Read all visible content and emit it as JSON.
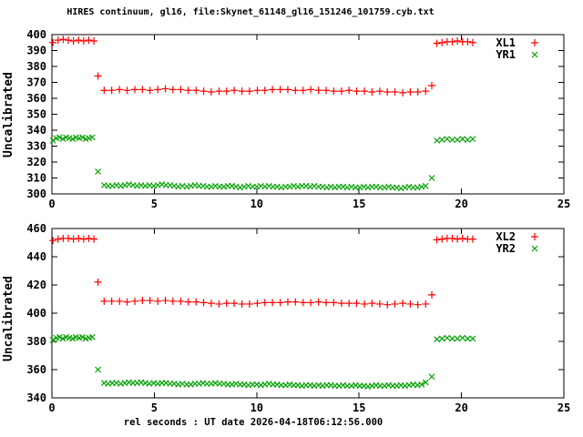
{
  "title": "HIRES continuum, gl16, file:Skynet_61148_gl16_151246_101759.cyb.txt",
  "xlabel": "rel seconds : UT date 2026-04-18T06:12:56.000",
  "palette": {
    "red": "#ff0000",
    "green": "#00a000",
    "axis": "#000000",
    "background": "#ffffff"
  },
  "chart_data": [
    {
      "type": "scatter",
      "title": "",
      "ylabel": "Uncalibrated",
      "xlim": [
        0,
        25
      ],
      "ylim": [
        300,
        400
      ],
      "xticks": [
        0,
        5,
        10,
        15,
        20,
        25
      ],
      "yticks": [
        300,
        310,
        320,
        330,
        340,
        350,
        360,
        370,
        380,
        390,
        400
      ],
      "grid": false,
      "legend_position": "top-right",
      "series": [
        {
          "name": "XL1",
          "marker": "plus",
          "color": "#ff0000",
          "x": [
            0.05,
            0.3,
            0.55,
            0.8,
            1.05,
            1.3,
            1.55,
            1.8,
            2.05,
            2.25,
            2.55,
            2.92,
            3.3,
            3.67,
            4.05,
            4.42,
            4.79,
            5.17,
            5.54,
            5.91,
            6.29,
            6.66,
            7.04,
            7.41,
            7.78,
            8.16,
            8.53,
            8.9,
            9.28,
            9.65,
            10.03,
            10.4,
            10.77,
            11.15,
            11.52,
            11.89,
            12.27,
            12.64,
            13.02,
            13.39,
            13.76,
            14.14,
            14.51,
            14.88,
            15.26,
            15.63,
            16.01,
            16.38,
            16.75,
            17.13,
            17.5,
            17.87,
            18.25,
            18.55,
            18.8,
            19.05,
            19.3,
            19.55,
            19.8,
            20.05,
            20.3,
            20.55
          ],
          "y": [
            395,
            396.5,
            397,
            396.5,
            396,
            396.5,
            396,
            396.5,
            396,
            374,
            365,
            365,
            365.5,
            365,
            365.5,
            365.5,
            365,
            365.5,
            366,
            365.5,
            365.5,
            365,
            365,
            364.5,
            364,
            364.5,
            364.5,
            365,
            364.5,
            364.5,
            365,
            365,
            365.5,
            365.5,
            365.5,
            365,
            365,
            365.5,
            365,
            365,
            364.5,
            364.5,
            365,
            364.5,
            364.5,
            364,
            364.5,
            364,
            364,
            363.5,
            364,
            364,
            364.5,
            368,
            394.5,
            395,
            395.5,
            395.5,
            396,
            395.5,
            395.5,
            395
          ]
        },
        {
          "name": "YR1",
          "marker": "cross",
          "color": "#00a000",
          "x": [
            0.05,
            0.21,
            0.37,
            0.53,
            0.69,
            0.85,
            1.01,
            1.17,
            1.33,
            1.49,
            1.65,
            1.81,
            1.97,
            2.25,
            2.55,
            2.75,
            2.95,
            3.15,
            3.36,
            3.56,
            3.76,
            3.96,
            4.16,
            4.36,
            4.56,
            4.76,
            4.97,
            5.17,
            5.37,
            5.57,
            5.77,
            5.97,
            6.17,
            6.37,
            6.58,
            6.78,
            6.98,
            7.18,
            7.38,
            7.58,
            7.78,
            7.98,
            8.19,
            8.39,
            8.59,
            8.79,
            8.99,
            9.19,
            9.39,
            9.59,
            9.8,
            10.0,
            10.2,
            10.4,
            10.6,
            10.8,
            11.0,
            11.2,
            11.41,
            11.61,
            11.81,
            12.01,
            12.21,
            12.41,
            12.61,
            12.81,
            13.02,
            13.22,
            13.42,
            13.62,
            13.82,
            14.02,
            14.22,
            14.42,
            14.63,
            14.83,
            15.03,
            15.23,
            15.43,
            15.63,
            15.83,
            16.03,
            16.24,
            16.44,
            16.64,
            16.84,
            17.04,
            17.24,
            17.44,
            17.64,
            17.85,
            18.05,
            18.25,
            18.55,
            18.8,
            19.05,
            19.3,
            19.55,
            19.8,
            20.05,
            20.3,
            20.55
          ],
          "y": [
            333.5,
            335,
            335.5,
            334.5,
            335.5,
            335,
            334.5,
            335.5,
            335,
            335.5,
            334.5,
            335,
            335.5,
            314,
            305.5,
            305,
            305,
            305.5,
            305,
            305.5,
            306,
            305.5,
            305,
            305.5,
            305,
            305.5,
            305,
            305.5,
            306,
            305.5,
            305.5,
            305,
            304.5,
            305,
            304.5,
            305,
            305.5,
            305,
            305,
            304.5,
            304.5,
            305,
            304.5,
            304.5,
            305,
            305,
            304.5,
            304,
            304.5,
            305,
            304.5,
            304.5,
            305,
            304.5,
            305,
            304.5,
            304.5,
            304,
            304.5,
            304.5,
            305,
            304.5,
            305,
            305,
            304.5,
            305,
            304.5,
            304.5,
            304,
            304.5,
            304,
            304.5,
            304.5,
            304,
            304.5,
            304,
            304,
            304.5,
            304,
            304.5,
            304.5,
            304,
            304,
            304.5,
            304,
            304,
            303.5,
            304,
            304.5,
            304,
            304,
            304.5,
            305,
            310,
            333.5,
            334,
            334.5,
            334,
            334,
            334.5,
            334,
            334.5
          ]
        }
      ]
    },
    {
      "type": "scatter",
      "title": "",
      "ylabel": "Uncalibrated",
      "xlim": [
        0,
        25
      ],
      "ylim": [
        340,
        460
      ],
      "xticks": [
        0,
        5,
        10,
        15,
        20,
        25
      ],
      "yticks": [
        340,
        360,
        380,
        400,
        420,
        440,
        460
      ],
      "grid": false,
      "legend_position": "top-right",
      "series": [
        {
          "name": "XL2",
          "marker": "plus",
          "color": "#ff0000",
          "x": [
            0.05,
            0.3,
            0.55,
            0.8,
            1.05,
            1.3,
            1.55,
            1.8,
            2.05,
            2.25,
            2.55,
            2.92,
            3.3,
            3.67,
            4.05,
            4.42,
            4.79,
            5.17,
            5.54,
            5.91,
            6.29,
            6.66,
            7.04,
            7.41,
            7.78,
            8.16,
            8.53,
            8.9,
            9.28,
            9.65,
            10.03,
            10.4,
            10.77,
            11.15,
            11.52,
            11.89,
            12.27,
            12.64,
            13.02,
            13.39,
            13.76,
            14.14,
            14.51,
            14.88,
            15.26,
            15.63,
            16.01,
            16.38,
            16.75,
            17.13,
            17.5,
            17.87,
            18.25,
            18.55,
            18.8,
            19.05,
            19.3,
            19.55,
            19.8,
            20.05,
            20.3,
            20.55
          ],
          "y": [
            451.5,
            452.5,
            453,
            453,
            452.5,
            453,
            452.5,
            453,
            452.5,
            422,
            408.5,
            408.5,
            408.5,
            408,
            408.5,
            409,
            409,
            408.5,
            409,
            408.5,
            408.5,
            408,
            408,
            407.5,
            407,
            406.5,
            407,
            407,
            406.5,
            406.5,
            407,
            407.5,
            407.5,
            407.5,
            408,
            408,
            407.5,
            407.5,
            408,
            407.5,
            407.5,
            407,
            407,
            407,
            406.5,
            407,
            406.5,
            406,
            406.5,
            407,
            406.5,
            406,
            406.5,
            413,
            452,
            452.5,
            453,
            453,
            452.5,
            453,
            452.5,
            452.5
          ]
        },
        {
          "name": "YR2",
          "marker": "cross",
          "color": "#00a000",
          "x": [
            0.05,
            0.21,
            0.37,
            0.53,
            0.69,
            0.85,
            1.01,
            1.17,
            1.33,
            1.49,
            1.65,
            1.81,
            1.97,
            2.25,
            2.55,
            2.75,
            2.95,
            3.15,
            3.36,
            3.56,
            3.76,
            3.96,
            4.16,
            4.36,
            4.56,
            4.76,
            4.97,
            5.17,
            5.37,
            5.57,
            5.77,
            5.97,
            6.17,
            6.37,
            6.58,
            6.78,
            6.98,
            7.18,
            7.38,
            7.58,
            7.78,
            7.98,
            8.19,
            8.39,
            8.59,
            8.79,
            8.99,
            9.19,
            9.39,
            9.59,
            9.8,
            10.0,
            10.2,
            10.4,
            10.6,
            10.8,
            11.0,
            11.2,
            11.41,
            11.61,
            11.81,
            12.01,
            12.21,
            12.41,
            12.61,
            12.81,
            13.02,
            13.22,
            13.42,
            13.62,
            13.82,
            14.02,
            14.22,
            14.42,
            14.63,
            14.83,
            15.03,
            15.23,
            15.43,
            15.63,
            15.83,
            16.03,
            16.24,
            16.44,
            16.64,
            16.84,
            17.04,
            17.24,
            17.44,
            17.64,
            17.85,
            18.05,
            18.25,
            18.55,
            18.8,
            19.05,
            19.3,
            19.55,
            19.8,
            20.05,
            20.3,
            20.55
          ],
          "y": [
            381,
            382.5,
            383,
            382,
            383,
            382.5,
            382,
            383,
            382.5,
            383,
            382,
            382.5,
            383,
            360,
            350.5,
            350,
            350.5,
            350.5,
            350,
            350.5,
            351,
            350.5,
            350.5,
            351,
            350.5,
            350,
            350.5,
            350,
            350.5,
            350.5,
            350,
            350,
            349.5,
            350,
            349.5,
            349.5,
            350,
            350,
            350.5,
            350,
            350,
            350.5,
            350,
            350,
            349.5,
            349.5,
            350,
            349.5,
            349.5,
            349,
            349.5,
            349.5,
            349,
            349.5,
            350,
            349.5,
            349.5,
            349,
            349,
            349.5,
            349,
            349,
            348.5,
            349,
            349,
            348.5,
            349,
            348.5,
            349,
            349,
            348.5,
            348.5,
            349,
            348.5,
            348.5,
            349,
            348.5,
            348.5,
            348,
            348.5,
            349,
            348.5,
            348.5,
            349,
            348.5,
            348.5,
            349,
            348.5,
            349,
            349.5,
            349,
            349.5,
            351,
            355,
            381.5,
            382,
            382.5,
            382,
            382,
            382.5,
            382,
            382
          ]
        }
      ]
    }
  ]
}
